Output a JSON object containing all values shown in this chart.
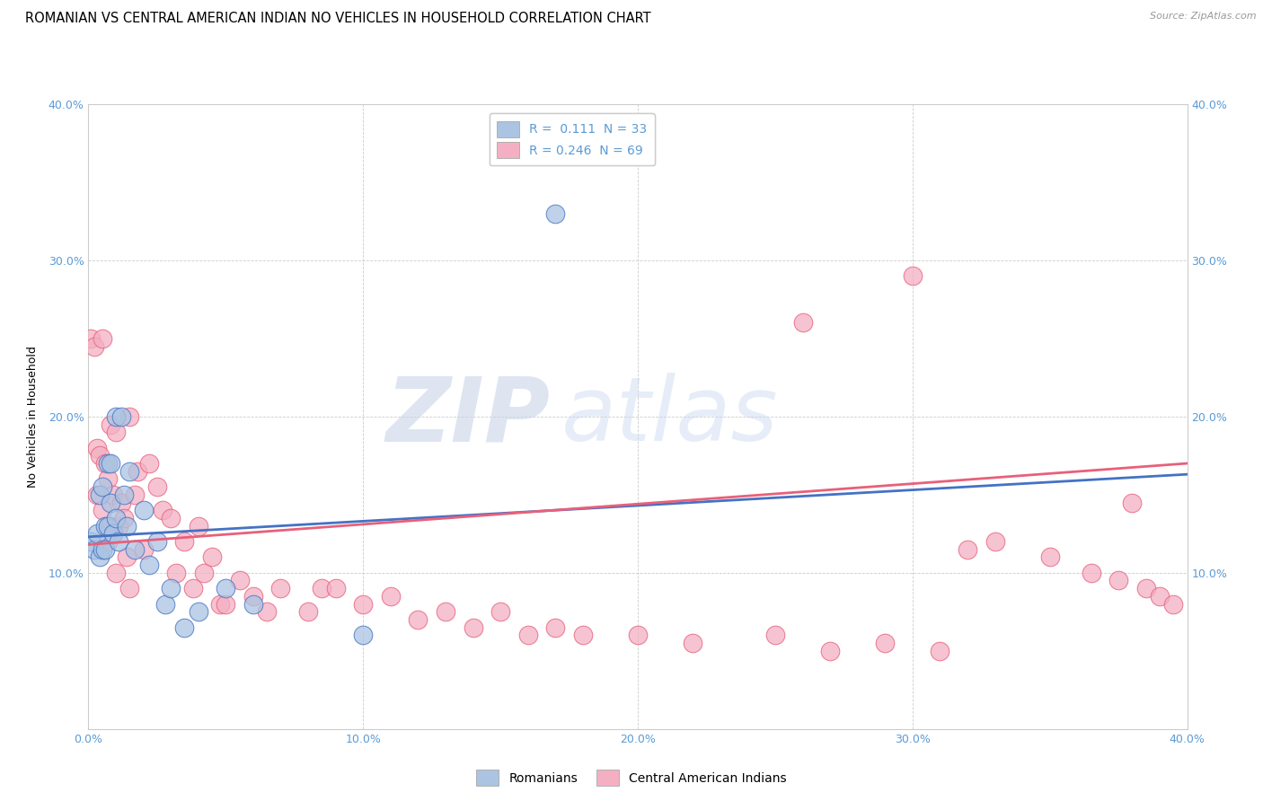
{
  "title": "ROMANIAN VS CENTRAL AMERICAN INDIAN NO VEHICLES IN HOUSEHOLD CORRELATION CHART",
  "source": "Source: ZipAtlas.com",
  "ylabel": "No Vehicles in Household",
  "xlim": [
    0.0,
    0.4
  ],
  "ylim": [
    0.0,
    0.4
  ],
  "xticks": [
    0.0,
    0.1,
    0.2,
    0.3,
    0.4
  ],
  "yticks": [
    0.0,
    0.1,
    0.2,
    0.3,
    0.4
  ],
  "legend_labels": [
    "Romanians",
    "Central American Indians"
  ],
  "R_romanian": "0.111",
  "N_romanian": "33",
  "R_central": "0.246",
  "N_central": "69",
  "color_romanian": "#aac4e2",
  "color_central": "#f4afc3",
  "line_romanian": "#4472c4",
  "line_central": "#e8607a",
  "watermark_zip": "ZIP",
  "watermark_atlas": "atlas",
  "background_color": "#ffffff",
  "grid_color": "#cccccc",
  "title_fontsize": 10.5,
  "tick_color": "#5b9bd5",
  "romanian_x": [
    0.001,
    0.002,
    0.003,
    0.004,
    0.004,
    0.005,
    0.005,
    0.006,
    0.006,
    0.007,
    0.007,
    0.008,
    0.008,
    0.009,
    0.01,
    0.01,
    0.011,
    0.012,
    0.013,
    0.014,
    0.015,
    0.017,
    0.02,
    0.022,
    0.025,
    0.028,
    0.03,
    0.035,
    0.04,
    0.05,
    0.06,
    0.1,
    0.17
  ],
  "romanian_y": [
    0.12,
    0.115,
    0.125,
    0.11,
    0.15,
    0.155,
    0.115,
    0.13,
    0.115,
    0.17,
    0.13,
    0.17,
    0.145,
    0.125,
    0.2,
    0.135,
    0.12,
    0.2,
    0.15,
    0.13,
    0.165,
    0.115,
    0.14,
    0.105,
    0.12,
    0.08,
    0.09,
    0.065,
    0.075,
    0.09,
    0.08,
    0.06,
    0.33
  ],
  "central_x": [
    0.001,
    0.002,
    0.003,
    0.003,
    0.004,
    0.005,
    0.005,
    0.006,
    0.007,
    0.007,
    0.008,
    0.008,
    0.009,
    0.01,
    0.01,
    0.011,
    0.012,
    0.013,
    0.014,
    0.015,
    0.015,
    0.017,
    0.018,
    0.02,
    0.022,
    0.025,
    0.027,
    0.03,
    0.032,
    0.035,
    0.038,
    0.04,
    0.042,
    0.045,
    0.048,
    0.05,
    0.055,
    0.06,
    0.065,
    0.07,
    0.08,
    0.085,
    0.09,
    0.1,
    0.11,
    0.12,
    0.13,
    0.14,
    0.15,
    0.16,
    0.17,
    0.18,
    0.2,
    0.22,
    0.25,
    0.27,
    0.29,
    0.31,
    0.33,
    0.35,
    0.365,
    0.375,
    0.385,
    0.39,
    0.395,
    0.26,
    0.3,
    0.32,
    0.38
  ],
  "central_y": [
    0.25,
    0.245,
    0.18,
    0.15,
    0.175,
    0.25,
    0.14,
    0.17,
    0.16,
    0.12,
    0.195,
    0.13,
    0.15,
    0.19,
    0.1,
    0.13,
    0.145,
    0.135,
    0.11,
    0.2,
    0.09,
    0.15,
    0.165,
    0.115,
    0.17,
    0.155,
    0.14,
    0.135,
    0.1,
    0.12,
    0.09,
    0.13,
    0.1,
    0.11,
    0.08,
    0.08,
    0.095,
    0.085,
    0.075,
    0.09,
    0.075,
    0.09,
    0.09,
    0.08,
    0.085,
    0.07,
    0.075,
    0.065,
    0.075,
    0.06,
    0.065,
    0.06,
    0.06,
    0.055,
    0.06,
    0.05,
    0.055,
    0.05,
    0.12,
    0.11,
    0.1,
    0.095,
    0.09,
    0.085,
    0.08,
    0.26,
    0.29,
    0.115,
    0.145
  ],
  "trendline_ro_x0": 0.0,
  "trendline_ro_x1": 0.4,
  "trendline_ro_y0": 0.123,
  "trendline_ro_y1": 0.163,
  "trendline_ca_x0": 0.0,
  "trendline_ca_x1": 0.4,
  "trendline_ca_y0": 0.118,
  "trendline_ca_y1": 0.17
}
